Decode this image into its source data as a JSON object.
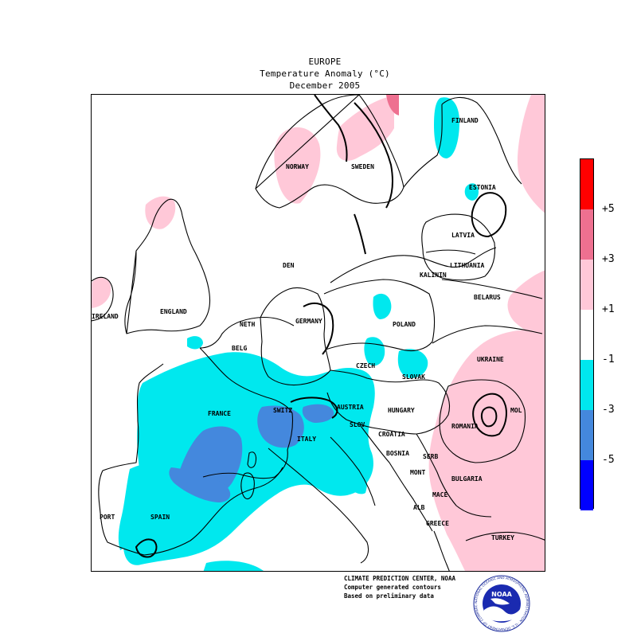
{
  "title": {
    "region": "EUROPE",
    "variable": "Temperature Anomaly (°C)",
    "period": "December 2005"
  },
  "legend": {
    "colors": [
      "#ff0000",
      "#ee7090",
      "#ffc8d8",
      "#ffffff",
      "#00e8ee",
      "#4488dd",
      "#0000ff"
    ],
    "labels": [
      "+5",
      "+3",
      "+1",
      "-1",
      "-3",
      "-5"
    ]
  },
  "countries": [
    {
      "name": "NORWAY"
    },
    {
      "name": "SWEDEN"
    },
    {
      "name": "FINLAND"
    },
    {
      "name": "ESTONIA"
    },
    {
      "name": "LATVIA"
    },
    {
      "name": "LITHUANIA"
    },
    {
      "name": "KALININ"
    },
    {
      "name": "BELARUS"
    },
    {
      "name": "DEN"
    },
    {
      "name": "ENGLAND"
    },
    {
      "name": "IRELAND"
    },
    {
      "name": "NETH"
    },
    {
      "name": "GERMANY"
    },
    {
      "name": "POLAND"
    },
    {
      "name": "BELG"
    },
    {
      "name": "CZECH"
    },
    {
      "name": "SLOVAK"
    },
    {
      "name": "UKRAINE"
    },
    {
      "name": "FRANCE"
    },
    {
      "name": "SWITZ"
    },
    {
      "name": "AUSTRIA"
    },
    {
      "name": "HUNGARY"
    },
    {
      "name": "SLOV"
    },
    {
      "name": "CROATIA"
    },
    {
      "name": "ROMANIA"
    },
    {
      "name": "MOL"
    },
    {
      "name": "ITALY"
    },
    {
      "name": "BOSNIA"
    },
    {
      "name": "SERB"
    },
    {
      "name": "MONT"
    },
    {
      "name": "BULGARIA"
    },
    {
      "name": "MACE"
    },
    {
      "name": "ALB"
    },
    {
      "name": "SPAIN"
    },
    {
      "name": "PORT"
    },
    {
      "name": "GREECE"
    },
    {
      "name": "TURKEY"
    }
  ],
  "credits": {
    "line1": "CLIMATE PREDICTION CENTER, NOAA",
    "line2": "Computer generated contours",
    "line3": "Based on preliminary data"
  },
  "logo": {
    "text": "NOAA",
    "ring_text": "NATIONAL OCEANIC AND ATMOSPHERIC ADMINISTRATION · U.S. DEPARTMENT OF COMMERCE"
  }
}
